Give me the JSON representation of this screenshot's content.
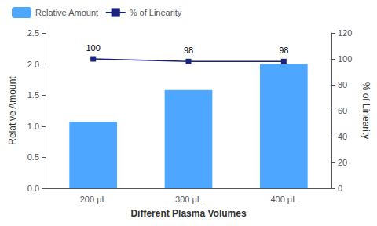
{
  "chart_data": {
    "type": "bar",
    "categories": [
      "200 μL",
      "300 μL",
      "400 μL"
    ],
    "xlabel": "Different Plasma Volumes",
    "ylabel": "Relative Amount",
    "y2label": "% of Linearity",
    "ylim": [
      0,
      2.5
    ],
    "yticks": [
      {
        "value": 0,
        "label": "0.0"
      },
      {
        "value": 0.5,
        "label": "0.5"
      },
      {
        "value": 1.0,
        "label": "1.0"
      },
      {
        "value": 1.5,
        "label": "1.5"
      },
      {
        "value": 2.0,
        "label": "2.0"
      },
      {
        "value": 2.5,
        "label": "2.5"
      }
    ],
    "y2lim": [
      0,
      120
    ],
    "y2ticks": [
      0,
      20,
      40,
      60,
      80,
      100,
      120
    ],
    "grid": false,
    "legend": "upper left",
    "series": [
      {
        "name": "Relative Amount",
        "type": "bar",
        "color": "#4da6ff",
        "values": [
          1.07,
          1.58,
          2.0
        ]
      },
      {
        "name": "% of Linearity",
        "type": "line",
        "axis": "y2",
        "color": "#1a237e",
        "marker": "square",
        "data_labels": true,
        "values": [
          100,
          98,
          98
        ]
      }
    ]
  }
}
